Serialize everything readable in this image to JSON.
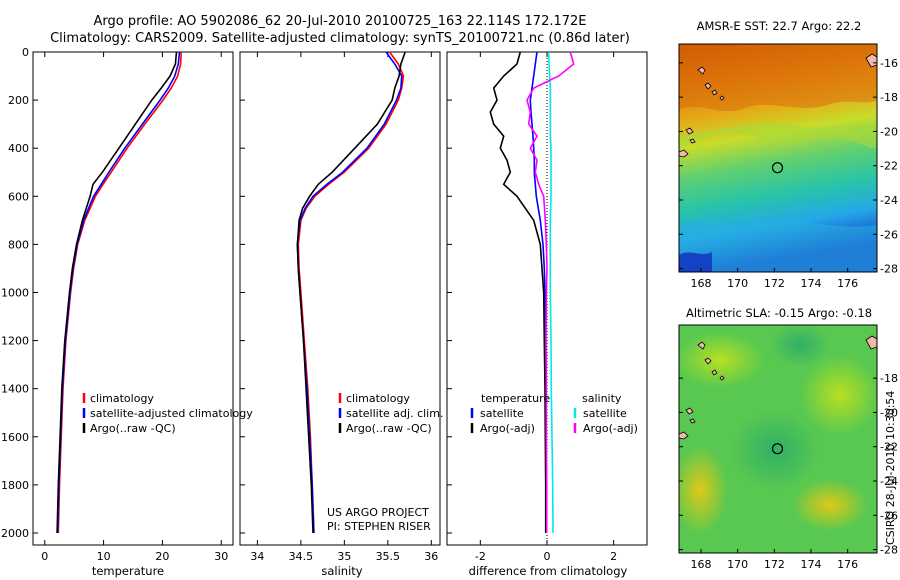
{
  "header": {
    "title_line1": "Argo profile: AO 5902086_62 20-Jul-2010 20100725_163 22.114S 172.172E",
    "title_line2": "Climatology: CARS2009. Satellite-adjusted climatology: synTS_20100721.nc (0.86d later)"
  },
  "colors": {
    "climatology": "#ff0000",
    "satellite": "#0000ff",
    "argo": "#000000",
    "sal_satellite": "#00e8e8",
    "sal_argo": "#ff00ff"
  },
  "chart_data": [
    {
      "id": "temperature",
      "type": "line",
      "xlabel": "temperature",
      "ylabel": "",
      "xlim": [
        -2,
        32
      ],
      "ylim": [
        2050,
        0
      ],
      "xticks": [
        0,
        10,
        20,
        30
      ],
      "yticks": [
        0,
        200,
        400,
        600,
        800,
        1000,
        1200,
        1400,
        1600,
        1800,
        2000
      ],
      "depth": [
        0,
        50,
        100,
        150,
        200,
        300,
        400,
        500,
        550,
        600,
        700,
        800,
        900,
        1000,
        1200,
        1400,
        1600,
        1800,
        2000
      ],
      "series": [
        {
          "name": "climatology",
          "color": "#ff0000",
          "values": [
            23.2,
            23.1,
            22.6,
            21.5,
            20.1,
            17.0,
            14.0,
            11.3,
            9.9,
            8.6,
            6.8,
            5.6,
            4.9,
            4.4,
            3.6,
            3.1,
            2.8,
            2.5,
            2.3
          ]
        },
        {
          "name": "satellite-adjusted climatology",
          "color": "#0000ff",
          "values": [
            22.9,
            22.7,
            22.1,
            21.0,
            19.6,
            16.6,
            13.6,
            10.9,
            9.6,
            8.3,
            6.6,
            5.5,
            4.8,
            4.3,
            3.5,
            3.0,
            2.7,
            2.4,
            2.2
          ]
        },
        {
          "name": "Argo(..raw -QC)",
          "color": "#000000",
          "values": [
            22.4,
            22.2,
            21.3,
            19.8,
            18.2,
            15.4,
            12.6,
            9.8,
            8.2,
            7.7,
            6.4,
            5.4,
            4.7,
            4.2,
            3.4,
            2.9,
            2.6,
            2.3,
            2.1
          ]
        }
      ],
      "legend": [
        "climatology",
        "satellite-adjusted climatology",
        "Argo(..raw -QC)"
      ]
    },
    {
      "id": "salinity",
      "type": "line",
      "xlabel": "salinity",
      "ylabel": "",
      "xlim": [
        33.8,
        36.1
      ],
      "ylim": [
        2050,
        0
      ],
      "xticks": [
        34,
        34.5,
        35,
        35.5,
        36
      ],
      "depth": [
        0,
        50,
        100,
        150,
        200,
        300,
        400,
        500,
        550,
        600,
        650,
        700,
        800,
        900,
        1000,
        1200,
        1400,
        1600,
        1800,
        2000
      ],
      "series": [
        {
          "name": "climatology",
          "color": "#ff0000",
          "values": [
            35.52,
            35.62,
            35.68,
            35.66,
            35.62,
            35.48,
            35.28,
            35.0,
            34.82,
            34.66,
            34.56,
            34.5,
            34.47,
            34.48,
            34.5,
            34.54,
            34.58,
            34.61,
            34.63,
            34.65
          ]
        },
        {
          "name": "satellite adj. clim.",
          "color": "#0000ff",
          "values": [
            35.48,
            35.58,
            35.66,
            35.65,
            35.6,
            35.46,
            35.26,
            34.98,
            34.8,
            34.64,
            34.55,
            34.49,
            34.46,
            34.47,
            34.49,
            34.53,
            34.57,
            34.6,
            34.63,
            34.65
          ]
        },
        {
          "name": "Argo(..raw -QC)",
          "color": "#000000",
          "values": [
            35.7,
            35.65,
            35.63,
            35.58,
            35.55,
            35.38,
            35.12,
            34.86,
            34.7,
            34.6,
            34.52,
            34.48,
            34.46,
            34.47,
            34.49,
            34.53,
            34.56,
            34.59,
            34.62,
            34.64
          ]
        }
      ],
      "legend": [
        "climatology",
        "satellite adj. clim.",
        "Argo(..raw -QC)"
      ],
      "annotation": [
        "US ARGO PROJECT",
        "PI: STEPHEN RISER"
      ]
    },
    {
      "id": "difference",
      "type": "line",
      "xlabel": "difference from climatology",
      "ylabel": "",
      "xlim": [
        -3,
        3
      ],
      "ylim": [
        2050,
        0
      ],
      "xticks": [
        -2,
        0,
        2
      ],
      "depth": [
        0,
        50,
        100,
        150,
        200,
        250,
        300,
        350,
        400,
        450,
        500,
        550,
        600,
        700,
        800,
        900,
        1000,
        1200,
        1400,
        1600,
        1800,
        2000
      ],
      "series": [
        {
          "name": "temperature satellite",
          "color": "#0000ff",
          "values": [
            -0.3,
            -0.35,
            -0.4,
            -0.45,
            -0.5,
            -0.48,
            -0.45,
            -0.42,
            -0.4,
            -0.38,
            -0.38,
            -0.35,
            -0.32,
            -0.2,
            -0.12,
            -0.08,
            -0.06,
            -0.05,
            -0.04,
            -0.04,
            -0.03,
            -0.03
          ]
        },
        {
          "name": "temperature Argo(-adj)",
          "color": "#000000",
          "values": [
            -0.8,
            -0.9,
            -1.3,
            -1.6,
            -1.5,
            -1.7,
            -1.6,
            -1.3,
            -1.4,
            -1.2,
            -1.1,
            -1.3,
            -0.9,
            -0.4,
            -0.2,
            -0.15,
            -0.1,
            -0.08,
            -0.06,
            -0.05,
            -0.04,
            -0.04
          ]
        },
        {
          "name": "salinity satellite",
          "color": "#00e8e8",
          "values": [
            0.05,
            0.06,
            0.08,
            0.1,
            0.1,
            0.1,
            0.1,
            0.1,
            0.12,
            0.12,
            0.12,
            0.12,
            0.12,
            0.1,
            0.1,
            0.1,
            0.1,
            0.12,
            0.13,
            0.15,
            0.17,
            0.18
          ]
        },
        {
          "name": "salinity Argo(-adj)",
          "color": "#ff00ff",
          "values": [
            0.7,
            0.8,
            0.35,
            -0.4,
            -0.6,
            -0.5,
            -0.55,
            -0.3,
            -0.5,
            -0.3,
            -0.35,
            -0.25,
            -0.1,
            -0.05,
            -0.02,
            0.0,
            -0.02,
            -0.03,
            -0.02,
            -0.02,
            -0.01,
            -0.01
          ]
        }
      ],
      "legend_headers": [
        "temperature",
        "salinity"
      ],
      "legend": [
        "satellite",
        "Argo(-adj)",
        "satellite",
        "Argo(-adj)"
      ]
    }
  ],
  "maps": {
    "sst": {
      "title": "AMSR-E SST: 22.7 Argo: 22.2",
      "xticks": [
        "168",
        "170",
        "172",
        "174",
        "176"
      ],
      "yticks": [
        "-16",
        "-18",
        "-20",
        "-22",
        "-24",
        "-26",
        "-28"
      ],
      "lon_range": [
        166.8,
        177.6
      ],
      "lat_range": [
        -28.2,
        -14.9
      ],
      "float_lon": 172.172,
      "float_lat": -22.114
    },
    "sla": {
      "title": "Altimetric SLA: -0.15 Argo: -0.18",
      "xticks": [
        "168",
        "170",
        "172",
        "174",
        "176"
      ],
      "yticks": [
        "-18",
        "-20",
        "-22",
        "-24",
        "-26",
        "-28"
      ],
      "lon_range": [
        166.8,
        177.6
      ],
      "lat_range": [
        -28.2,
        -14.9
      ],
      "float_lon": 172.172,
      "float_lat": -22.114
    }
  },
  "stamp": "CSIRO 28-Jul-2010 10:30:54"
}
